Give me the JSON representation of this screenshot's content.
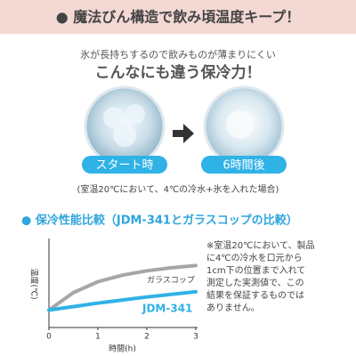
{
  "header": {
    "title": "● 魔法びん構造で飲み頃温度キープ！"
  },
  "intro": {
    "subtitle": "氷が長持ちするので飲みものが薄まりにくい",
    "headline": "こんなにも違う保冷力！"
  },
  "photos": [
    {
      "label": "スタート時"
    },
    {
      "label": "6時間後"
    }
  ],
  "caption": "(室温20℃において、4℃の冷水+氷を入れた場合)",
  "note": [
    "※室温20℃において、製品",
    "に4℃の冷水を口元から",
    "1cm下の位置まで入れて",
    "測定した実測値で、この",
    "結果を保証するものでは",
    "ありません。"
  ],
  "chart_data": {
    "type": "line",
    "title": "● 保冷性能比較（JDM-341とガラスコップの比較）",
    "x_label": "時間(h)",
    "y_label": "温度(℃)",
    "x": [
      0,
      0.5,
      1,
      1.5,
      2,
      2.5,
      3
    ],
    "series": [
      {
        "name": "ガラスコップ",
        "color": "#a6a6a6",
        "values": [
          4,
          8,
          10.5,
          12,
          13,
          13.7,
          14.2
        ]
      },
      {
        "name": "JDM-341",
        "color": "#2fb2e6",
        "values": [
          4,
          4.8,
          5.6,
          6.3,
          7,
          7.6,
          8.2
        ]
      }
    ],
    "xlim": [
      0,
      3
    ],
    "xticks": [
      0,
      1,
      2,
      3
    ],
    "ylim": [
      0,
      20
    ]
  }
}
